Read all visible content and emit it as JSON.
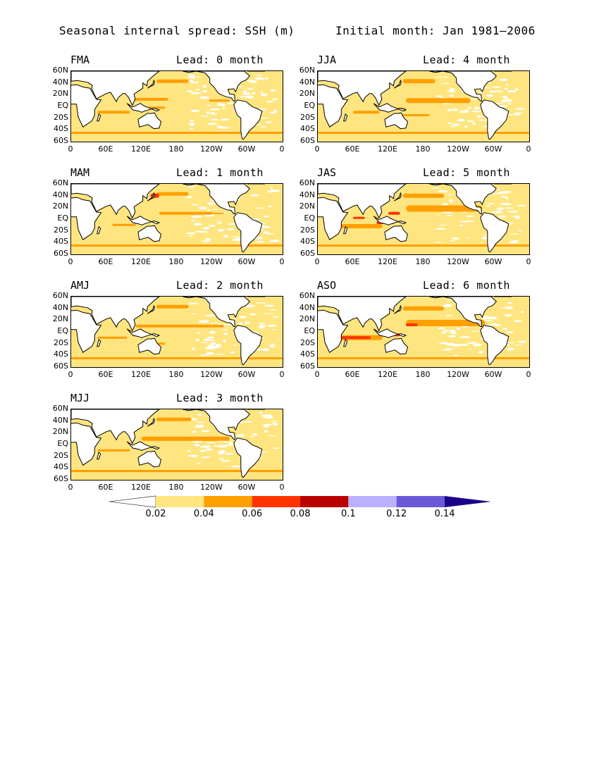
{
  "header": {
    "left_title": "Seasonal internal spread: SSH (m)",
    "right_title": "Initial month: Jan 1981–2006"
  },
  "axes": {
    "lat_labels": [
      "60N",
      "40N",
      "20N",
      "EQ",
      "20S",
      "40S",
      "60S"
    ],
    "lon_labels": [
      "0",
      "60E",
      "120E",
      "180",
      "120W",
      "60W",
      "0"
    ]
  },
  "panels": [
    {
      "season": "FMA",
      "lead": "Lead: 0 month"
    },
    {
      "season": "JJA",
      "lead": "Lead: 4 month"
    },
    {
      "season": "MAM",
      "lead": "Lead: 1 month"
    },
    {
      "season": "JAS",
      "lead": "Lead: 5 month"
    },
    {
      "season": "AMJ",
      "lead": "Lead: 2 month"
    },
    {
      "season": "ASO",
      "lead": "Lead: 6 month"
    },
    {
      "season": "MJJ",
      "lead": "Lead: 3 month"
    }
  ],
  "colorbar": {
    "labels": [
      "0.02",
      "0.04",
      "0.06",
      "0.08",
      "0.1",
      "0.12",
      "0.14"
    ],
    "colors": [
      "#ffffff",
      "#ffe57f",
      "#ff9f00",
      "#ff3300",
      "#bb0000",
      "#bbb0ff",
      "#6a5ad8",
      "#1a0088"
    ]
  },
  "colors": {
    "ocean_base": "#ffe57f",
    "land": "#ffffff",
    "coast": "#000000"
  }
}
